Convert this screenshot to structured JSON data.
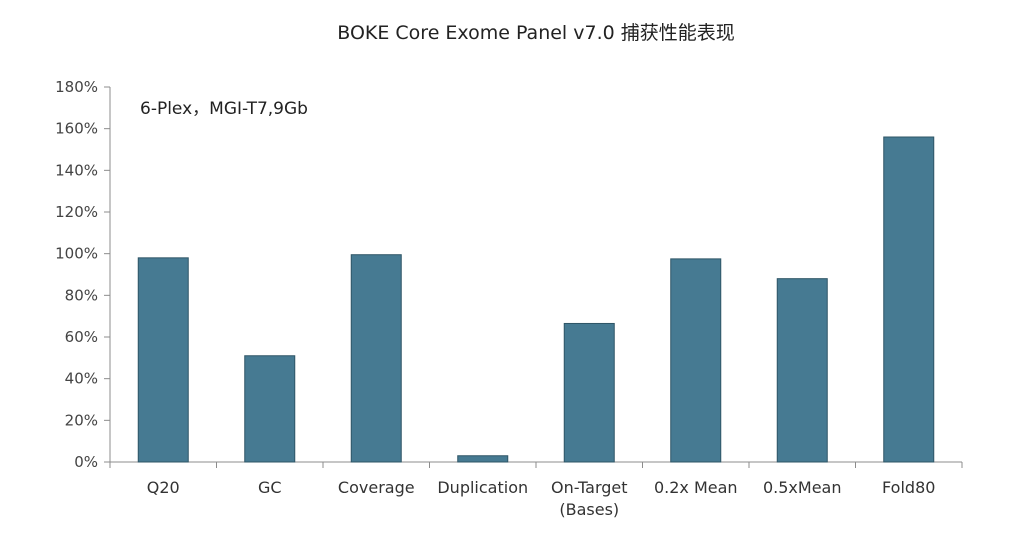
{
  "chart_data": {
    "type": "bar",
    "title": "BOKE Core Exome Panel v7.0 捕获性能表现",
    "subtitle": "6-Plex，MGI-T7,9Gb",
    "xlabel": "",
    "ylabel": "",
    "ylim": [
      0,
      180
    ],
    "y_unit": "%",
    "y_ticks": [
      "0%",
      "20%",
      "40%",
      "60%",
      "80%",
      "100%",
      "120%",
      "140%",
      "160%",
      "180%"
    ],
    "categories": [
      "Q20",
      "GC",
      "Coverage",
      "Duplication",
      "On-Target (Bases)",
      "0.2x Mean",
      "0.5xMean",
      "Fold80"
    ],
    "category_lines": [
      [
        "Q20"
      ],
      [
        "GC"
      ],
      [
        "Coverage"
      ],
      [
        "Duplication"
      ],
      [
        "On-Target",
        "(Bases)"
      ],
      [
        "0.2x Mean"
      ],
      [
        "0.5xMean"
      ],
      [
        "Fold80"
      ]
    ],
    "values": [
      98,
      51,
      99.5,
      3,
      66.5,
      97.5,
      88,
      156
    ],
    "grid": false,
    "legend": "none",
    "bar_color": "#467a92",
    "bar_edge_color": "#2e5566",
    "axis_color": "#8c8c8c"
  }
}
